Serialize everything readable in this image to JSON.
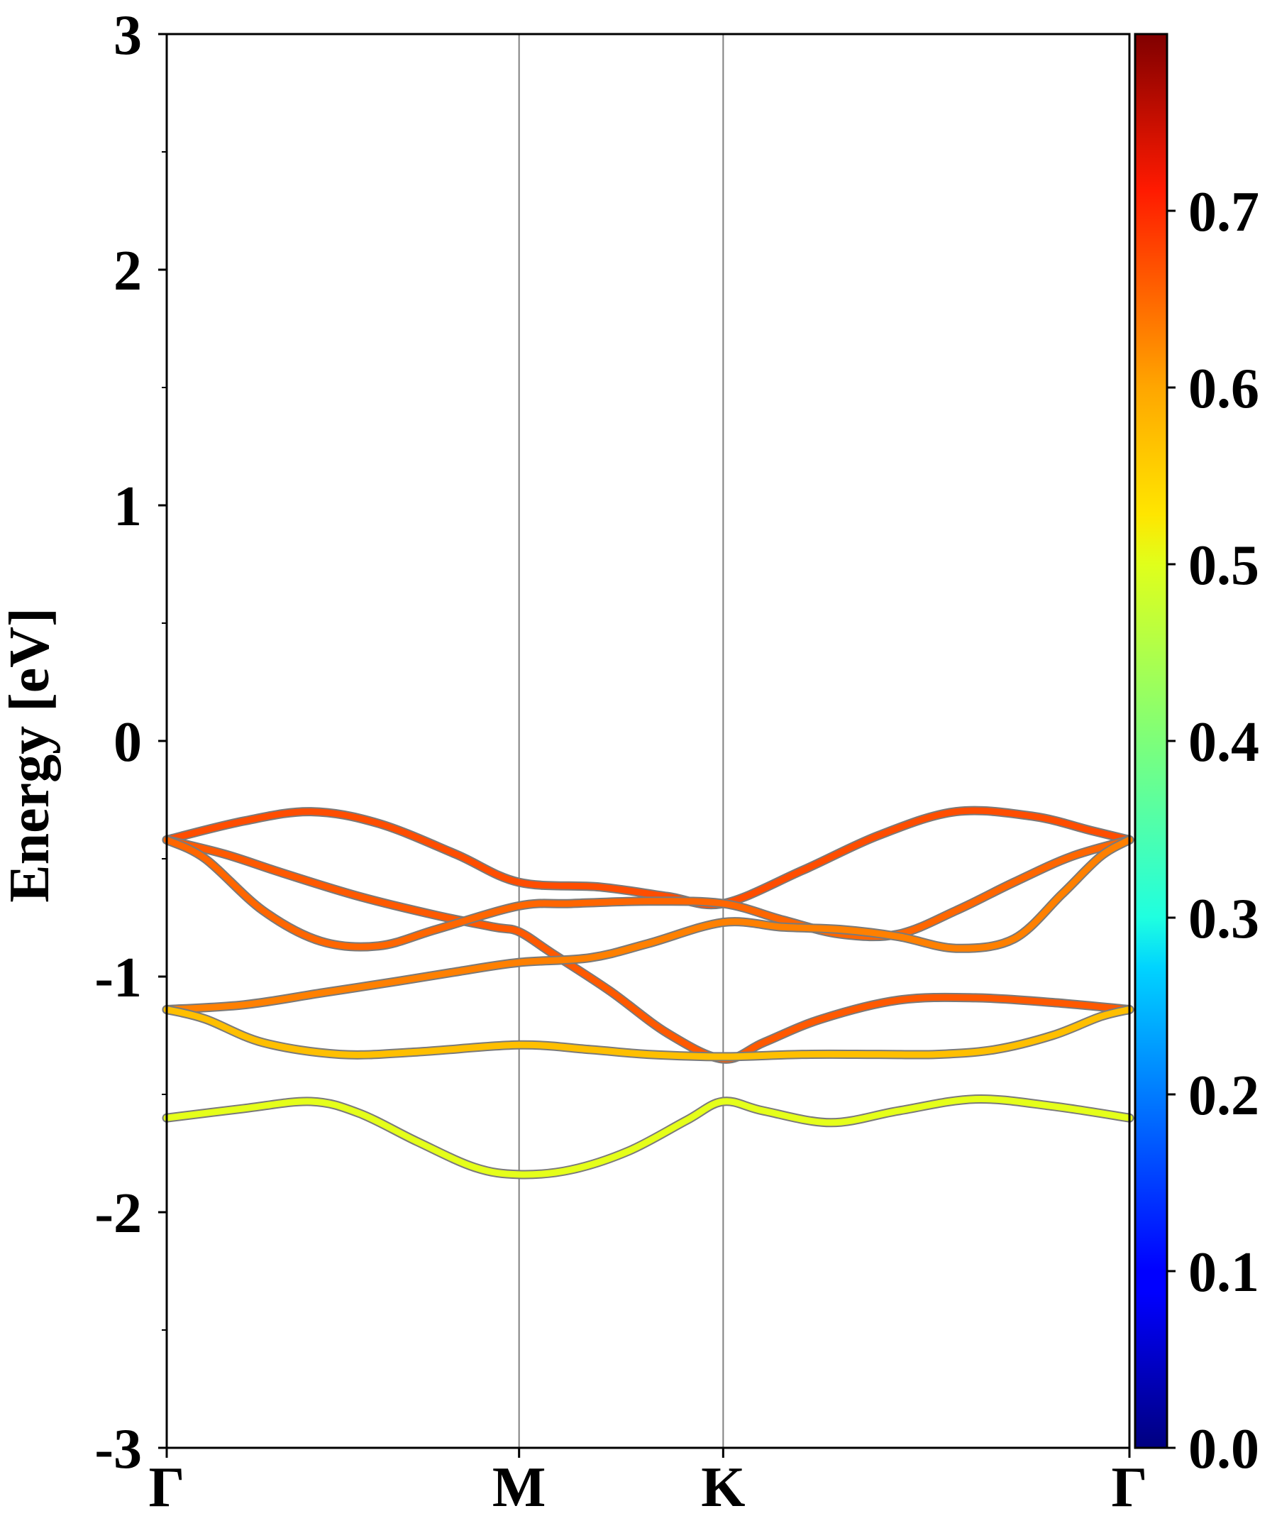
{
  "chart_data": {
    "type": "line",
    "ylabel": "Energy [eV]",
    "xlabel": "",
    "ylim": [
      -3,
      3
    ],
    "y_ticks": [
      "3",
      "2",
      "1",
      "0",
      "-1",
      "-2",
      "-3"
    ],
    "y_tick_values": [
      3,
      2,
      1,
      0,
      -1,
      -2,
      -3
    ],
    "k_points": [
      {
        "label": "Γ",
        "x": 0
      },
      {
        "label": "M",
        "x": 0.366
      },
      {
        "label": "K",
        "x": 0.578
      },
      {
        "label": "Γ",
        "x": 1.0
      }
    ],
    "grid": false,
    "colorbar": {
      "colormap": "jet",
      "range": [
        0.0,
        0.8
      ],
      "tick_labels": [
        "0.0",
        "0.1",
        "0.2",
        "0.3",
        "0.4",
        "0.5",
        "0.6",
        "0.7"
      ],
      "tick_values": [
        0.0,
        0.1,
        0.2,
        0.3,
        0.4,
        0.5,
        0.6,
        0.7
      ]
    },
    "series": [
      {
        "weight": 0.64,
        "points": [
          [
            0,
            -0.42
          ],
          [
            0.08,
            -0.34
          ],
          [
            0.15,
            -0.3
          ],
          [
            0.22,
            -0.35
          ],
          [
            0.3,
            -0.48
          ],
          [
            0.366,
            -0.6
          ],
          [
            0.45,
            -0.62
          ],
          [
            0.52,
            -0.66
          ],
          [
            0.578,
            -0.69
          ],
          [
            0.66,
            -0.55
          ],
          [
            0.74,
            -0.4
          ],
          [
            0.82,
            -0.3
          ],
          [
            0.9,
            -0.32
          ],
          [
            0.96,
            -0.38
          ],
          [
            1.0,
            -0.42
          ]
        ]
      },
      {
        "weight": 0.63,
        "points": [
          [
            0,
            -0.42
          ],
          [
            0.06,
            -0.48
          ],
          [
            0.12,
            -0.56
          ],
          [
            0.2,
            -0.66
          ],
          [
            0.28,
            -0.74
          ],
          [
            0.34,
            -0.79
          ],
          [
            0.366,
            -0.81
          ],
          [
            0.4,
            -0.9
          ],
          [
            0.46,
            -1.06
          ],
          [
            0.52,
            -1.24
          ],
          [
            0.578,
            -1.35
          ],
          [
            0.62,
            -1.28
          ],
          [
            0.68,
            -1.18
          ],
          [
            0.76,
            -1.1
          ],
          [
            0.84,
            -1.09
          ],
          [
            0.92,
            -1.11
          ],
          [
            1.0,
            -1.14
          ]
        ]
      },
      {
        "weight": 0.62,
        "points": [
          [
            0,
            -0.42
          ],
          [
            0.04,
            -0.5
          ],
          [
            0.1,
            -0.72
          ],
          [
            0.16,
            -0.85
          ],
          [
            0.22,
            -0.87
          ],
          [
            0.28,
            -0.8
          ],
          [
            0.366,
            -0.7
          ],
          [
            0.42,
            -0.69
          ],
          [
            0.5,
            -0.68
          ],
          [
            0.578,
            -0.69
          ],
          [
            0.64,
            -0.76
          ],
          [
            0.7,
            -0.82
          ],
          [
            0.76,
            -0.82
          ],
          [
            0.82,
            -0.72
          ],
          [
            0.88,
            -0.6
          ],
          [
            0.94,
            -0.49
          ],
          [
            1.0,
            -0.42
          ]
        ]
      },
      {
        "weight": 0.6,
        "points": [
          [
            0,
            -1.14
          ],
          [
            0.08,
            -1.12
          ],
          [
            0.16,
            -1.07
          ],
          [
            0.24,
            -1.02
          ],
          [
            0.3,
            -0.98
          ],
          [
            0.366,
            -0.94
          ],
          [
            0.44,
            -0.92
          ],
          [
            0.5,
            -0.86
          ],
          [
            0.578,
            -0.77
          ],
          [
            0.64,
            -0.79
          ],
          [
            0.7,
            -0.8
          ],
          [
            0.76,
            -0.83
          ],
          [
            0.82,
            -0.88
          ],
          [
            0.88,
            -0.84
          ],
          [
            0.93,
            -0.65
          ],
          [
            0.97,
            -0.49
          ],
          [
            1.0,
            -0.42
          ]
        ]
      },
      {
        "weight": 0.55,
        "points": [
          [
            0,
            -1.14
          ],
          [
            0.04,
            -1.18
          ],
          [
            0.1,
            -1.28
          ],
          [
            0.18,
            -1.33
          ],
          [
            0.26,
            -1.32
          ],
          [
            0.366,
            -1.29
          ],
          [
            0.44,
            -1.31
          ],
          [
            0.5,
            -1.33
          ],
          [
            0.578,
            -1.34
          ],
          [
            0.66,
            -1.33
          ],
          [
            0.74,
            -1.33
          ],
          [
            0.8,
            -1.33
          ],
          [
            0.86,
            -1.31
          ],
          [
            0.92,
            -1.25
          ],
          [
            0.97,
            -1.17
          ],
          [
            1.0,
            -1.14
          ]
        ]
      },
      {
        "weight": 0.48,
        "points": [
          [
            0,
            -1.6
          ],
          [
            0.08,
            -1.56
          ],
          [
            0.15,
            -1.53
          ],
          [
            0.2,
            -1.58
          ],
          [
            0.26,
            -1.7
          ],
          [
            0.32,
            -1.81
          ],
          [
            0.366,
            -1.84
          ],
          [
            0.42,
            -1.82
          ],
          [
            0.48,
            -1.74
          ],
          [
            0.54,
            -1.61
          ],
          [
            0.578,
            -1.53
          ],
          [
            0.62,
            -1.57
          ],
          [
            0.69,
            -1.62
          ],
          [
            0.76,
            -1.57
          ],
          [
            0.84,
            -1.52
          ],
          [
            0.92,
            -1.55
          ],
          [
            1.0,
            -1.6
          ]
        ]
      }
    ]
  }
}
